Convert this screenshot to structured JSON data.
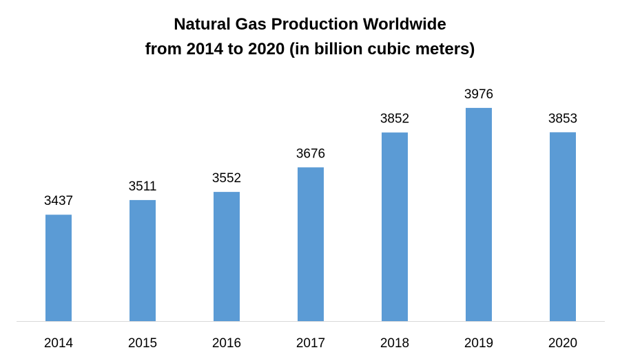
{
  "chart_data": {
    "type": "bar",
    "title_line1": "Natural Gas Production Worldwide",
    "title_line2": "from 2014 to 2020 (in billion cubic meters)",
    "xlabel": "",
    "ylabel": "",
    "categories": [
      "2014",
      "2015",
      "2016",
      "2017",
      "2018",
      "2019",
      "2020"
    ],
    "values": [
      3437,
      3511,
      3552,
      3676,
      3852,
      3976,
      3853
    ],
    "ylim": [
      2900,
      4000
    ],
    "grid": false,
    "bar_color": "#5b9bd5",
    "axis_color": "#d9d9d9"
  }
}
